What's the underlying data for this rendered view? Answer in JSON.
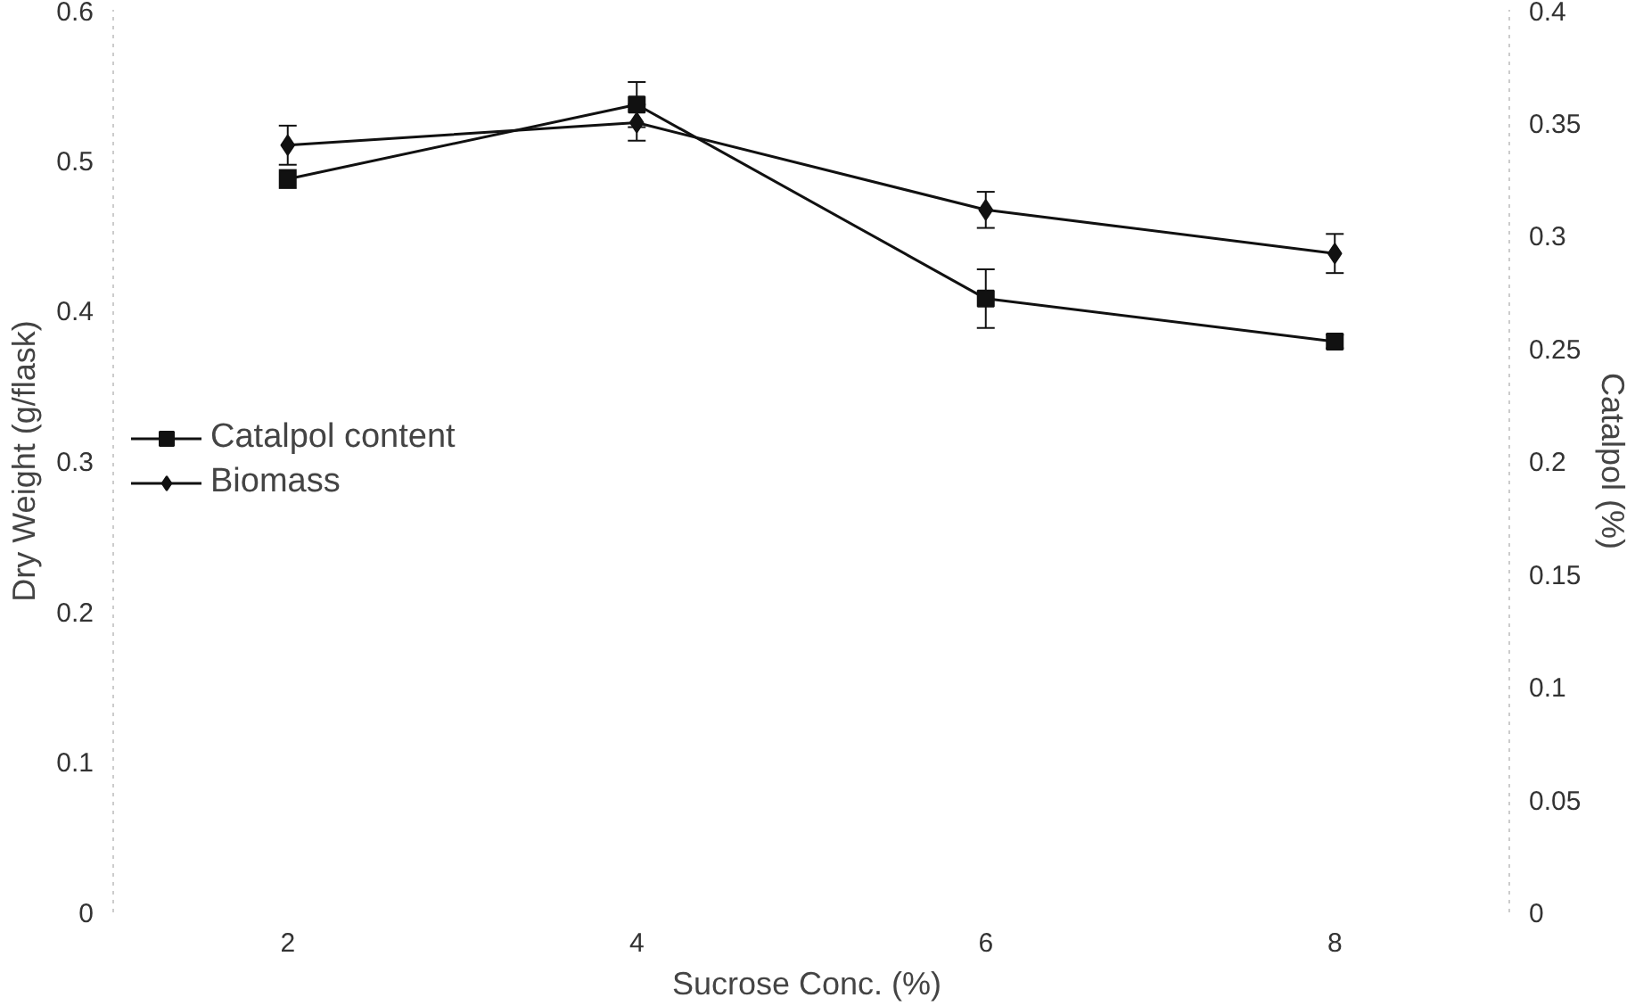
{
  "chart_data": {
    "type": "line",
    "xlabel": "Sucrose  Conc. (%)",
    "ylabel": "Dry Weight (g/flask)",
    "y2label": "Catalpol (%)",
    "x": [
      2,
      4,
      6,
      8
    ],
    "xlim": [
      1,
      9
    ],
    "xticks": [
      2,
      4,
      6,
      8
    ],
    "ylim": [
      0,
      0.6
    ],
    "yticks": [
      0,
      0.1,
      0.2,
      0.3,
      0.4,
      0.5,
      0.6
    ],
    "y2lim": [
      0,
      0.4
    ],
    "y2ticks": [
      0,
      0.05,
      0.1,
      0.15,
      0.2,
      0.25,
      0.3,
      0.35,
      0.4
    ],
    "series": [
      {
        "name": "Catalpol content",
        "color": "#111111",
        "axis": "y2",
        "marker": "square",
        "values": [
          0.325,
          0.358,
          0.272,
          0.253
        ],
        "errors": [
          0.004,
          0.01,
          0.013,
          0.003
        ]
      },
      {
        "name": "Biomass",
        "color": "#111111",
        "marker": "diamond",
        "values": [
          0.51,
          0.525,
          0.467,
          0.438
        ],
        "errors": [
          0.013,
          0.012,
          0.012,
          0.013
        ]
      }
    ],
    "grid": false,
    "legend": "left",
    "line_style": "solid"
  }
}
